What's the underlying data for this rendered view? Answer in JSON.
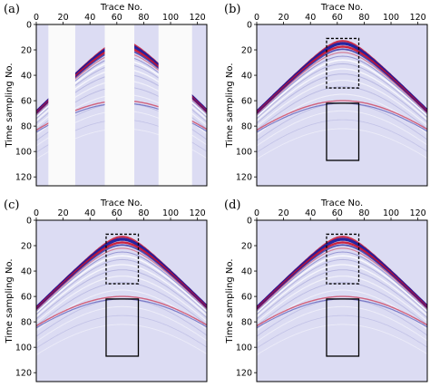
{
  "colors": {
    "background": "#dcdcf3",
    "positive": "#c8102e",
    "negative": "#1a1a9c",
    "frame": "#000000"
  },
  "axes": {
    "x_label": "Trace No.",
    "y_label": "Time sampling No.",
    "x_ticks": [
      "0",
      "20",
      "40",
      "60",
      "80",
      "100",
      "120"
    ],
    "y_ticks": [
      "0",
      "20",
      "40",
      "60",
      "80",
      "100",
      "120"
    ],
    "x_range": [
      0,
      127
    ],
    "y_range": [
      0,
      127
    ]
  },
  "panels": [
    {
      "label": "(a)",
      "missing_traces": [
        [
          9,
          29
        ],
        [
          51,
          73
        ],
        [
          91,
          116
        ]
      ],
      "boxes": false
    },
    {
      "label": "(b)",
      "missing_traces": [],
      "boxes": true
    },
    {
      "label": "(c)",
      "missing_traces": [],
      "boxes": true
    },
    {
      "label": "(d)",
      "missing_traces": [],
      "boxes": true
    }
  ],
  "event": {
    "apex_trace": 64,
    "apex_time": 16,
    "curvature": 0.0115
  },
  "dashed_box": {
    "x": [
      52,
      76
    ],
    "y": [
      11,
      50
    ]
  },
  "solid_box": {
    "x": [
      52,
      76
    ],
    "y": [
      62,
      107
    ]
  }
}
